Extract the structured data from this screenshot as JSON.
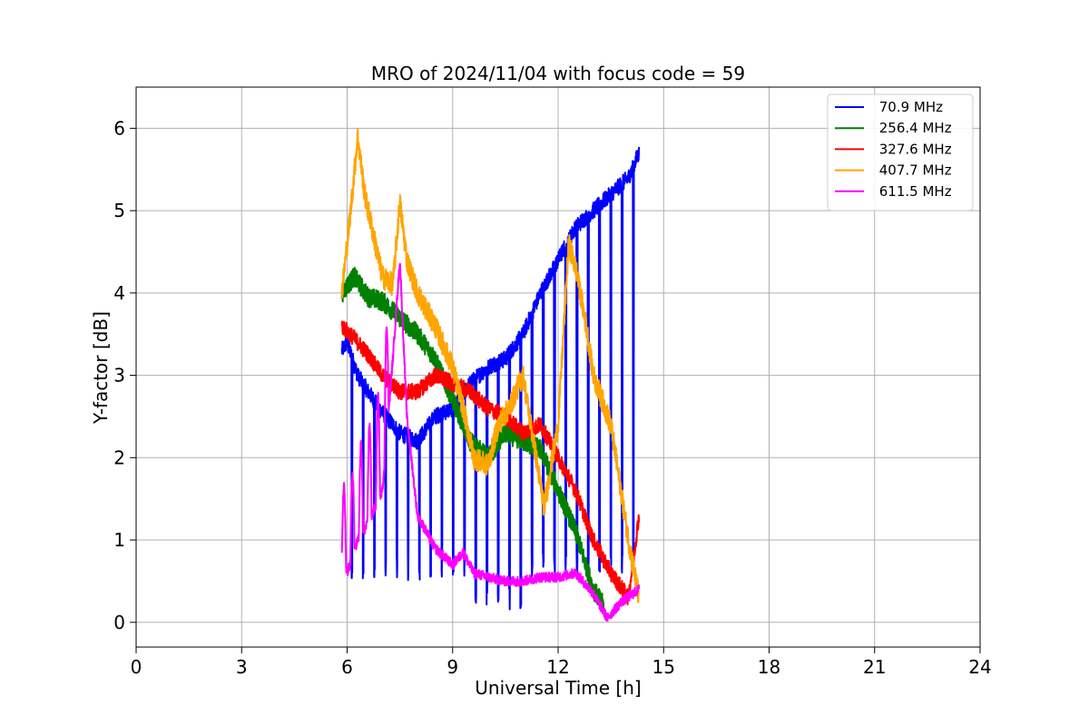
{
  "chart_data": {
    "type": "line",
    "title": "MRO of 2024/11/04 with focus code = 59",
    "xlabel": "Universal Time [h]",
    "ylabel": "Y-factor [dB]",
    "xlim": [
      0,
      24
    ],
    "ylim": [
      -0.3,
      6.5
    ],
    "xticks": [
      0,
      3,
      6,
      9,
      12,
      15,
      18,
      21,
      24
    ],
    "yticks": [
      0,
      1,
      2,
      3,
      4,
      5,
      6
    ],
    "grid": true,
    "legend_position": "top-right",
    "series": [
      {
        "name": " 70.9 MHz",
        "color": "#0000ff",
        "x": [
          5.85,
          6.0,
          6.3,
          6.6,
          7.0,
          7.5,
          8.0,
          8.5,
          9.0,
          9.5,
          10.0,
          10.5,
          11.0,
          11.5,
          12.0,
          12.5,
          13.0,
          13.5,
          14.0,
          14.3
        ],
        "y": [
          3.3,
          3.4,
          3.0,
          2.8,
          2.55,
          2.3,
          2.2,
          2.5,
          2.6,
          2.9,
          3.1,
          3.2,
          3.5,
          4.0,
          4.4,
          4.8,
          5.0,
          5.2,
          5.4,
          5.7
        ],
        "dip_period": 0.32,
        "dip_floor": 0.5
      },
      {
        "name": " 256.4 MHz",
        "color": "#008000",
        "x": [
          5.85,
          6.2,
          6.6,
          7.0,
          7.5,
          8.0,
          8.5,
          9.0,
          9.5,
          10.0,
          10.5,
          11.0,
          11.5,
          12.0,
          12.5,
          13.0,
          13.3
        ],
        "y": [
          4.0,
          4.2,
          3.95,
          3.9,
          3.7,
          3.5,
          3.2,
          2.7,
          2.2,
          2.0,
          2.3,
          2.2,
          2.1,
          1.6,
          1.1,
          0.4,
          0.2
        ],
        "noise": 0.12
      },
      {
        "name": " 327.6 MHz",
        "color": "#ff0000",
        "x": [
          5.85,
          6.2,
          6.6,
          7.0,
          7.5,
          8.0,
          8.5,
          9.0,
          9.5,
          10.0,
          10.5,
          11.0,
          11.5,
          12.0,
          12.5,
          13.0,
          13.5,
          14.0,
          14.3
        ],
        "y": [
          3.6,
          3.45,
          3.25,
          3.0,
          2.8,
          2.8,
          3.0,
          2.9,
          2.8,
          2.6,
          2.5,
          2.3,
          2.4,
          2.0,
          1.6,
          1.0,
          0.6,
          0.3,
          1.3
        ],
        "noise": 0.1
      },
      {
        "name": " 407.7 MHz",
        "color": "#ffa500",
        "x": [
          5.85,
          6.1,
          6.3,
          6.5,
          6.8,
          7.0,
          7.3,
          7.5,
          7.7,
          8.0,
          8.5,
          9.0,
          9.3,
          9.6,
          10.0,
          10.3,
          10.6,
          11.0,
          11.3,
          11.6,
          12.0,
          12.3,
          12.5,
          12.8,
          13.0,
          13.5,
          14.0,
          14.3
        ],
        "y": [
          4.0,
          5.0,
          5.9,
          5.2,
          4.6,
          4.2,
          4.1,
          5.1,
          4.4,
          4.0,
          3.6,
          3.1,
          2.6,
          2.0,
          1.9,
          2.4,
          2.6,
          3.0,
          2.2,
          1.4,
          2.4,
          4.6,
          4.3,
          3.6,
          3.0,
          2.4,
          1.0,
          0.3
        ],
        "noise": 0.14
      },
      {
        "name": " 611.5 MHz",
        "color": "#ff00ff",
        "x": [
          5.85,
          6.0,
          6.3,
          6.6,
          7.0,
          7.3,
          7.5,
          7.7,
          8.0,
          8.5,
          9.0,
          9.3,
          9.6,
          10.0,
          10.5,
          11.0,
          11.5,
          12.0,
          12.5,
          13.0,
          13.4,
          13.8,
          14.3
        ],
        "y": [
          0.8,
          0.6,
          1.0,
          1.2,
          1.6,
          3.2,
          4.4,
          2.5,
          1.3,
          0.9,
          0.7,
          0.85,
          0.6,
          0.55,
          0.5,
          0.5,
          0.55,
          0.55,
          0.6,
          0.35,
          0.05,
          0.25,
          0.4
        ],
        "noise": 0.06,
        "early_swings": 0.9
      }
    ]
  }
}
